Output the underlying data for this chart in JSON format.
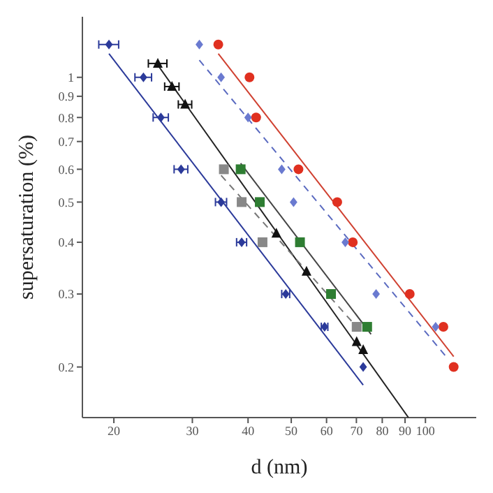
{
  "chart_data": {
    "type": "scatter",
    "xlabel": "d (nm)",
    "ylabel": "supersaturation (%)",
    "log": "xy",
    "grid": false,
    "legend": false,
    "xlim": [
      17,
      130
    ],
    "ylim": [
      0.151,
      1.4
    ],
    "xticks": [
      20,
      30,
      40,
      50,
      60,
      70,
      80,
      90,
      100
    ],
    "yticks": [
      0.2,
      0.3,
      0.4,
      0.5,
      0.6,
      0.7,
      0.8,
      0.9,
      1
    ],
    "series": [
      {
        "type": "line",
        "color": "#2b3a9a",
        "marker": "none",
        "line_style": "solid",
        "x": [
          19.5,
          72.5
        ],
        "values": [
          1.14,
          0.181
        ]
      },
      {
        "type": "line",
        "color": "#222222",
        "marker": "none",
        "line_style": "solid",
        "x": [
          25.1,
          91.6
        ],
        "values": [
          1.07,
          0.151
        ]
      },
      {
        "type": "line",
        "color": "#444444",
        "marker": "none",
        "line_style": "solid",
        "x": [
          38.5,
          75.5
        ],
        "values": [
          0.62,
          0.24
        ]
      },
      {
        "type": "line",
        "color": "#777777",
        "marker": "none",
        "line_style": "dashed",
        "x": [
          34.8,
          70.1
        ],
        "values": [
          0.58,
          0.25
        ]
      },
      {
        "type": "line",
        "color": "#d04030",
        "marker": "none",
        "line_style": "solid",
        "x": [
          34.3,
          115.7
        ],
        "values": [
          1.14,
          0.212
        ]
      },
      {
        "type": "line",
        "color": "#5a6ac0",
        "marker": "none",
        "line_style": "dashed",
        "x": [
          31.1,
          112
        ],
        "values": [
          1.1,
          0.21
        ]
      },
      {
        "color": "#2b3a9a",
        "marker": "diamond",
        "x": [
          19.5,
          23.3,
          25.5,
          28.3,
          34.8,
          38.7,
          48.6,
          59.4,
          72.5
        ],
        "values": [
          1.2,
          1.0,
          0.8,
          0.6,
          0.5,
          0.4,
          0.3,
          0.25,
          0.2
        ],
        "xerrors": [
          1,
          1,
          1,
          1,
          1,
          1,
          1,
          1,
          null
        ]
      },
      {
        "color": "#111111",
        "marker": "triangle",
        "x": [
          25.1,
          27.0,
          28.9,
          46.3,
          54.1,
          70.1,
          72.5
        ],
        "values": [
          1.08,
          0.95,
          0.86,
          0.42,
          0.34,
          0.23,
          0.22
        ],
        "xerrors": [
          1.2,
          1,
          1,
          null,
          null,
          null,
          null
        ]
      },
      {
        "color": "#2e7d32",
        "marker": "square",
        "x": [
          38.5,
          42.5,
          52.3,
          61.4,
          74.0
        ],
        "values": [
          0.6,
          0.5,
          0.4,
          0.3,
          0.25
        ]
      },
      {
        "color": "#888888",
        "marker": "square",
        "x": [
          35.3,
          38.7,
          43.1,
          70.1
        ],
        "values": [
          0.6,
          0.5,
          0.4,
          0.25
        ]
      },
      {
        "color": "#e03020",
        "marker": "circle",
        "x": [
          34.3,
          40.3,
          41.7,
          51.9,
          63.4,
          68.7,
          92.2,
          109.7,
          115.7
        ],
        "values": [
          1.2,
          1.0,
          0.8,
          0.6,
          0.5,
          0.4,
          0.3,
          0.25,
          0.2
        ]
      },
      {
        "color": "#6a7ad0",
        "marker": "diamond",
        "x": [
          31.1,
          34.8,
          40.0,
          47.6,
          50.6,
          66.1,
          77.5,
          105.4
        ],
        "values": [
          1.2,
          1.0,
          0.8,
          0.6,
          0.5,
          0.4,
          0.3,
          0.25
        ]
      }
    ]
  }
}
